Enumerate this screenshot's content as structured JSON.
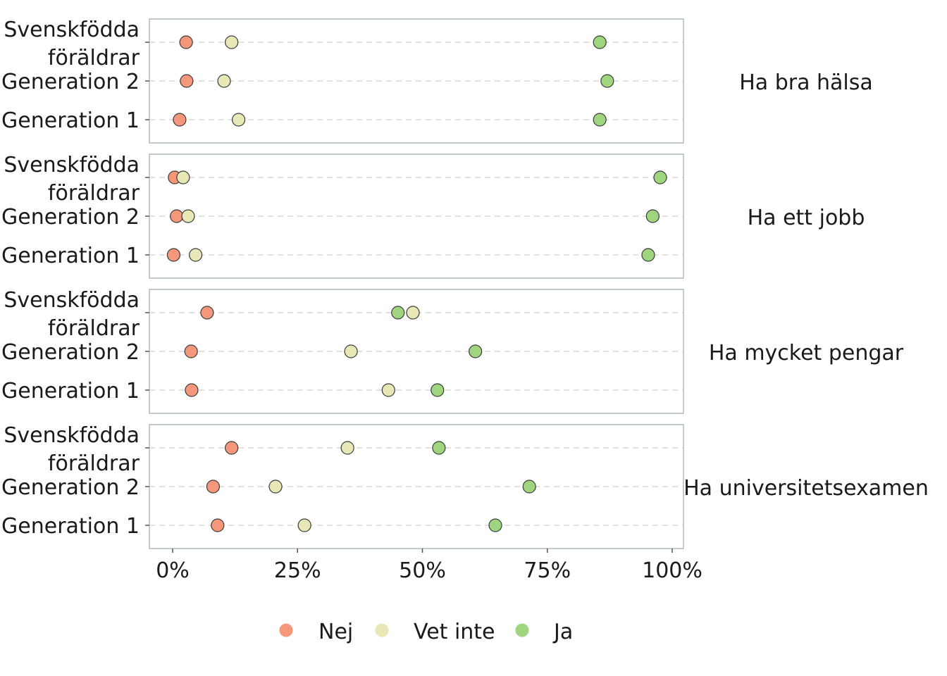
{
  "chart_data": {
    "type": "scatter",
    "x_axis": {
      "ticks": [
        0,
        25,
        50,
        75,
        100
      ],
      "tick_labels": [
        "0%",
        "25%",
        "50%",
        "75%",
        "100%"
      ],
      "xlim": [
        -2,
        101
      ]
    },
    "groups": [
      "Svenskfödda föräldrar",
      "Generation 2",
      "Generation 1"
    ],
    "group_label_lines": [
      [
        "Svenskfödda",
        "föräldrar"
      ],
      [
        "Generation 2"
      ],
      [
        "Generation 1"
      ]
    ],
    "series": [
      {
        "name": "Nej",
        "color": "#f4977a"
      },
      {
        "name": "Vet inte",
        "color": "#e8e8b6"
      },
      {
        "name": "Ja",
        "color": "#9fd57f"
      }
    ],
    "legend": {
      "position": "bottom"
    },
    "grid": true,
    "panels": [
      {
        "label": "Ha bra hälsa",
        "values": {
          "Svenskfödda föräldrar": {
            "Nej": 2.7,
            "Vet inte": 11.8,
            "Ja": 85.5
          },
          "Generation 2": {
            "Nej": 2.8,
            "Vet inte": 10.3,
            "Ja": 87.0
          },
          "Generation 1": {
            "Nej": 1.4,
            "Vet inte": 13.2,
            "Ja": 85.5
          }
        }
      },
      {
        "label": "Ha ett jobb",
        "values": {
          "Svenskfödda föräldrar": {
            "Nej": 0.4,
            "Vet inte": 2.1,
            "Ja": 97.6
          },
          "Generation 2": {
            "Nej": 0.8,
            "Vet inte": 3.1,
            "Ja": 96.1
          },
          "Generation 1": {
            "Nej": 0.2,
            "Vet inte": 4.6,
            "Ja": 95.2
          }
        }
      },
      {
        "label": "Ha mycket pengar",
        "values": {
          "Svenskfödda föräldrar": {
            "Nej": 6.9,
            "Vet inte": 48.1,
            "Ja": 45.1
          },
          "Generation 2": {
            "Nej": 3.7,
            "Vet inte": 35.7,
            "Ja": 60.6
          },
          "Generation 1": {
            "Nej": 3.8,
            "Vet inte": 43.2,
            "Ja": 53.0
          }
        }
      },
      {
        "label": "Ha universitetsexamen",
        "values": {
          "Svenskfödda föräldrar": {
            "Nej": 11.8,
            "Vet inte": 35.0,
            "Ja": 53.3
          },
          "Generation 2": {
            "Nej": 8.1,
            "Vet inte": 20.6,
            "Ja": 71.4
          },
          "Generation 1": {
            "Nej": 9.0,
            "Vet inte": 26.4,
            "Ja": 64.6
          }
        }
      }
    ]
  }
}
